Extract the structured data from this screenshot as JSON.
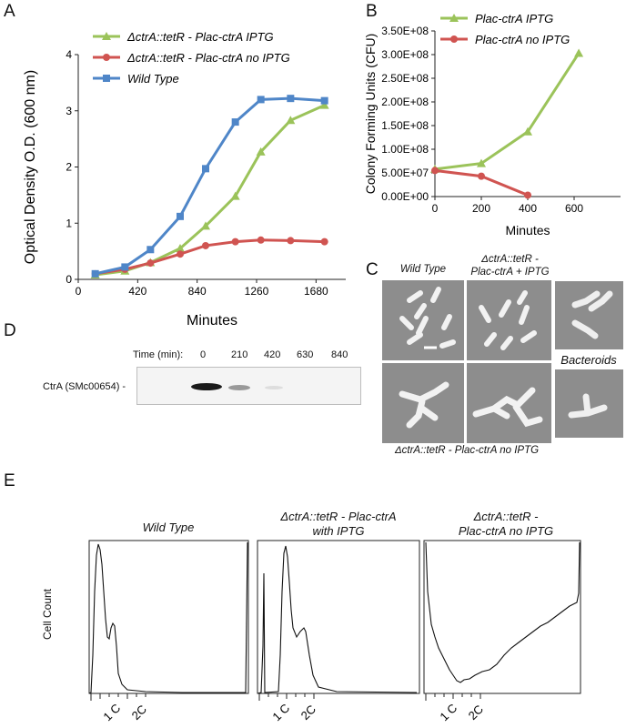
{
  "panels": {
    "A": "A",
    "B": "B",
    "C": "C",
    "D": "D",
    "E": "E"
  },
  "chart_data": [
    {
      "id": "A",
      "type": "line",
      "xlabel": "Minutes",
      "ylabel": "Optical Density O.D. (600 nm)",
      "xlim": [
        0,
        1890
      ],
      "ylim": [
        0,
        4
      ],
      "xticks": [
        "0",
        "420",
        "840",
        "1260",
        "1680"
      ],
      "xtick_values": [
        0,
        420,
        840,
        1260,
        1680
      ],
      "yticks": [
        "0",
        "1",
        "2",
        "3",
        "4"
      ],
      "ytick_values": [
        0,
        1,
        2,
        3,
        4
      ],
      "legend_position": "top-left",
      "series": [
        {
          "name": "ΔctrA::tetR - Plac-ctrA IPTG",
          "color": "#9bc35a",
          "marker": "triangle",
          "x": [
            120,
            330,
            510,
            720,
            900,
            1110,
            1290,
            1500,
            1740
          ],
          "y": [
            0.08,
            0.15,
            0.3,
            0.55,
            0.95,
            1.48,
            2.27,
            2.83,
            3.1
          ]
        },
        {
          "name": "ΔctrA::tetR - Plac-ctrA no IPTG",
          "color": "#d05451",
          "marker": "circle",
          "x": [
            120,
            330,
            510,
            720,
            900,
            1110,
            1290,
            1500,
            1740
          ],
          "y": [
            0.1,
            0.18,
            0.29,
            0.45,
            0.6,
            0.67,
            0.7,
            0.69,
            0.67
          ]
        },
        {
          "name": "Wild Type",
          "color": "#4f86c8",
          "marker": "square",
          "x": [
            120,
            330,
            510,
            720,
            900,
            1110,
            1290,
            1500,
            1740
          ],
          "y": [
            0.1,
            0.22,
            0.53,
            1.12,
            1.97,
            2.8,
            3.2,
            3.22,
            3.18
          ]
        }
      ]
    },
    {
      "id": "B",
      "type": "line",
      "xlabel": "Minutes",
      "ylabel": "Colony Forming Units (CFU)",
      "xlim": [
        0,
        800
      ],
      "ylim": [
        0,
        350000000
      ],
      "xticks": [
        "0",
        "200",
        "400",
        "600"
      ],
      "xtick_values": [
        0,
        200,
        400,
        600
      ],
      "yticks": [
        "0.00E+00",
        "5.00E+07",
        "1.00E+08",
        "1.50E+08",
        "2.00E+08",
        "2.50E+08",
        "3.00E+08",
        "3.50E+08"
      ],
      "ytick_values": [
        0,
        50000000,
        100000000,
        150000000,
        200000000,
        250000000,
        300000000,
        350000000
      ],
      "legend_position": "top-right",
      "series": [
        {
          "name": "Plac-ctrA IPTG",
          "color": "#9bc35a",
          "marker": "triangle",
          "x": [
            0,
            200,
            400,
            620
          ],
          "y": [
            58000000,
            70000000,
            137000000,
            303000000
          ]
        },
        {
          "name": "Plac-ctrA no IPTG",
          "color": "#d05451",
          "marker": "circle",
          "x": [
            0,
            200,
            400
          ],
          "y": [
            55000000,
            43000000,
            3000000
          ]
        }
      ]
    }
  ],
  "panel_C": {
    "caption_wild": "Wild Type",
    "caption_iptg_1": "ΔctrA::tetR -",
    "caption_iptg_2": "Plac-ctrA + IPTG",
    "caption_noiptg": "ΔctrA::tetR - Plac-ctrA no IPTG",
    "caption_bacteroids": "Bacteroids"
  },
  "panel_D": {
    "time_label": "Time (min):",
    "times": [
      "0",
      "210",
      "420",
      "630",
      "840"
    ],
    "band_label": "CtrA (SMc00654) -"
  },
  "panel_E": {
    "ylabel": "Cell Count",
    "histograms": [
      {
        "title_1": "Wild Type",
        "title_2": ""
      },
      {
        "title_1": "ΔctrA::tetR - Plac-ctrA",
        "title_2": "with IPTG"
      },
      {
        "title_1": "ΔctrA::tetR -",
        "title_2": "Plac-ctrA no IPTG"
      }
    ],
    "xtick_1c": "1 C",
    "xtick_2c": "2C"
  }
}
